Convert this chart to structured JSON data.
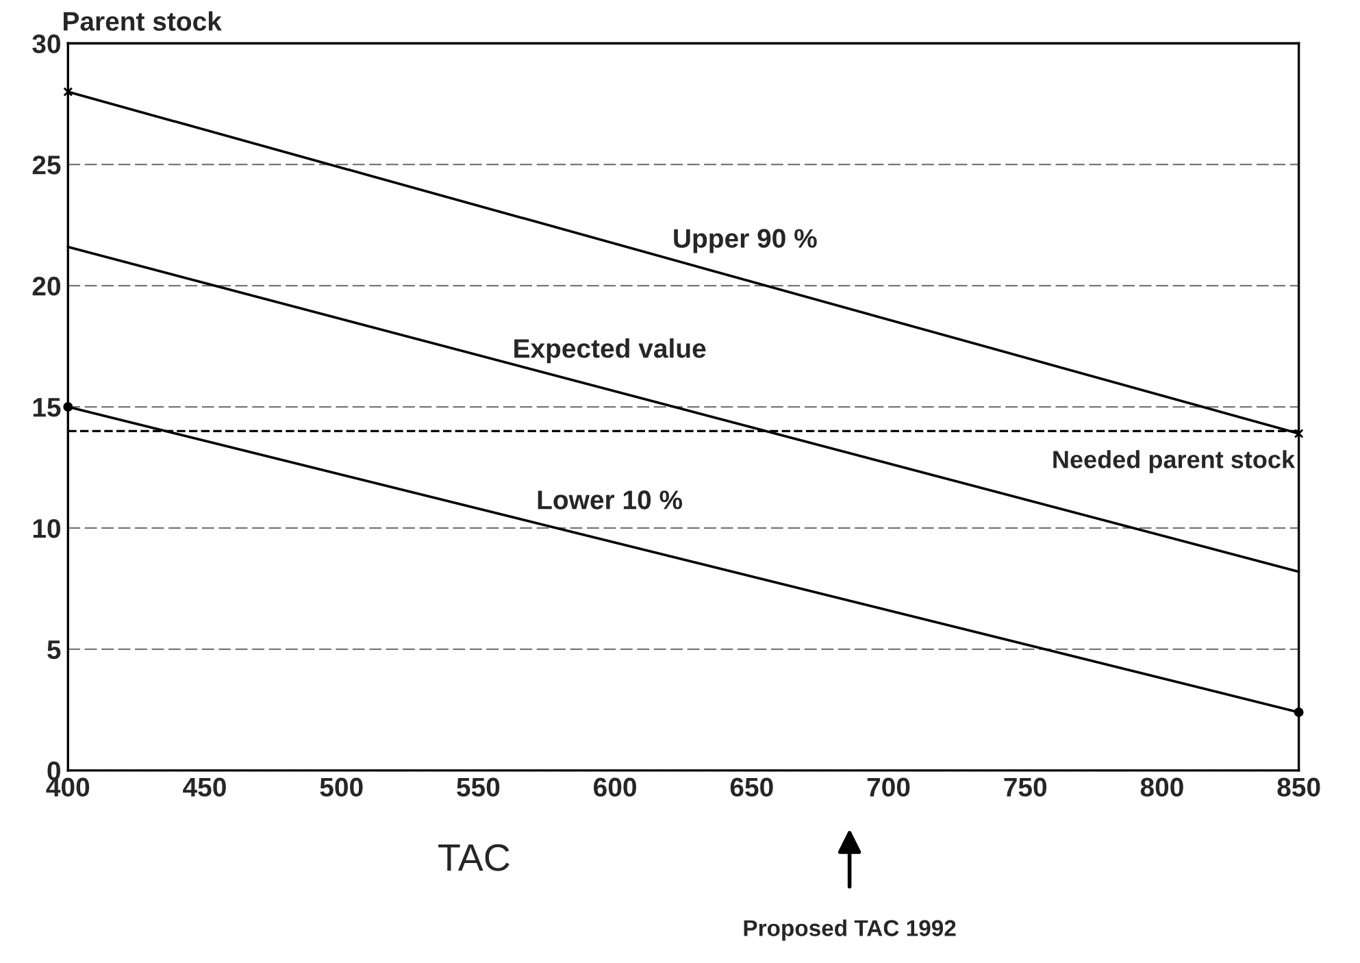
{
  "chart_data": {
    "type": "line",
    "xlabel": "TAC",
    "ylabel": "Parent stock",
    "x": [
      400,
      850
    ],
    "series": [
      {
        "name": "Upper 90 %",
        "color": "#000000",
        "values": [
          28,
          13.9
        ],
        "marker": "cross"
      },
      {
        "name": "Expected value",
        "color": "#000000",
        "values": [
          21.6,
          8.2
        ],
        "marker": "none"
      },
      {
        "name": "Lower 10 %",
        "color": "#000000",
        "values": [
          15,
          2.4
        ],
        "marker": "circle"
      }
    ],
    "annotations": [
      "Proposed TAC 1992"
    ],
    "ref_lines": [
      {
        "axis": "y",
        "value": 14,
        "label": "Needed parent stock",
        "line_style": "dashed",
        "color": "#000000"
      }
    ],
    "xlim": [
      400,
      850
    ],
    "ylim": [
      0,
      30
    ],
    "xticks": [
      400,
      450,
      500,
      550,
      600,
      650,
      700,
      750,
      800,
      850
    ],
    "yticks": [
      0,
      5,
      10,
      15,
      20,
      25,
      30
    ],
    "grid": "y",
    "legend": false,
    "line_style": "solid"
  }
}
